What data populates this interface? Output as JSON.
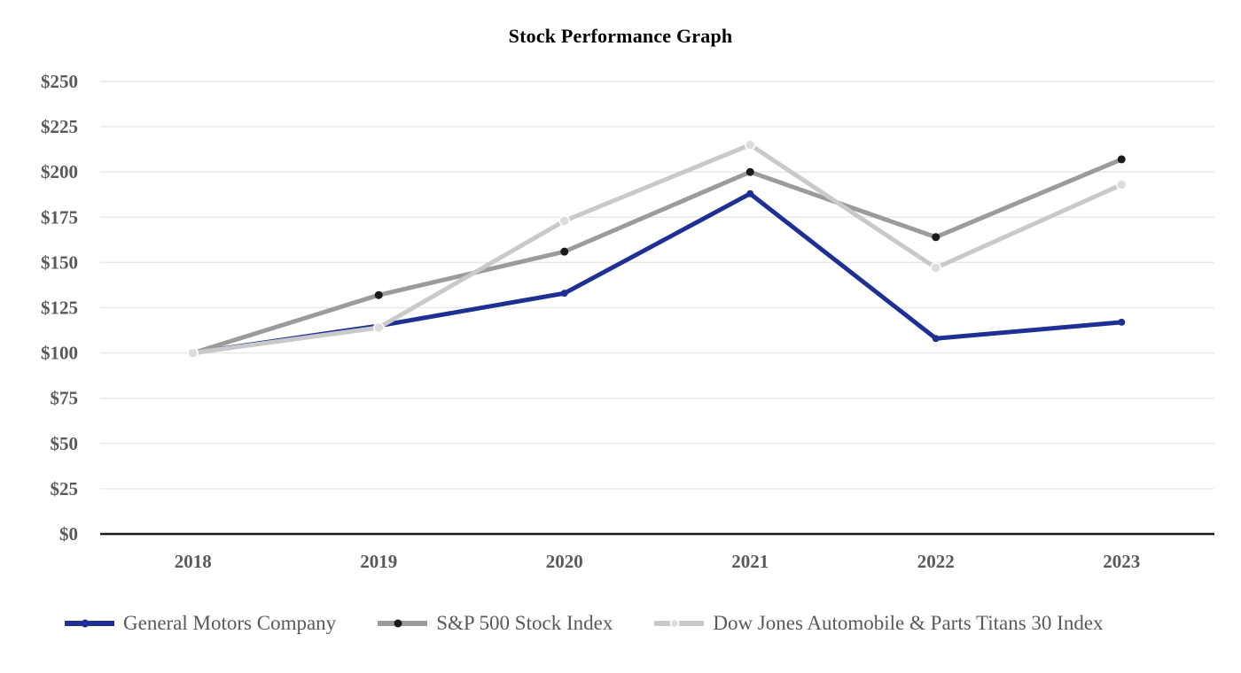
{
  "chart_data": {
    "type": "line",
    "title": "Stock Performance Graph",
    "categories": [
      "2018",
      "2019",
      "2020",
      "2021",
      "2022",
      "2023"
    ],
    "series": [
      {
        "name": "General Motors Company",
        "values": [
          100,
          115,
          133,
          188,
          108,
          117
        ],
        "color": "#1e3094",
        "marker_color": "#1e3094",
        "marker_stroke": "none"
      },
      {
        "name": "S&P 500 Stock Index",
        "values": [
          100,
          132,
          156,
          200,
          164,
          207
        ],
        "color": "#9b9b9b",
        "marker_color": "#1a1a1a",
        "marker_stroke": "none"
      },
      {
        "name": "Dow Jones Automobile & Parts Titans 30 Index",
        "values": [
          100,
          114,
          173,
          215,
          147,
          193
        ],
        "color": "#c9c9c9",
        "marker_color": "#dcdcdc",
        "marker_stroke": "#ffffff"
      }
    ],
    "xlabel": "",
    "ylabel": "",
    "ylim": [
      0,
      250
    ],
    "y_tick_step": 25,
    "y_tick_labels": [
      "$0",
      "$25",
      "$50",
      "$75",
      "$100",
      "$125",
      "$150",
      "$175",
      "$200",
      "$225",
      "$250"
    ],
    "grid": "horizontal",
    "legend_position": "bottom",
    "colors": {
      "grid": "#e9e9e9",
      "axis": "#1a1a1a",
      "tick_text": "#595959",
      "title_text": "#000000",
      "legend_text": "#595959",
      "background": "#ffffff"
    }
  }
}
